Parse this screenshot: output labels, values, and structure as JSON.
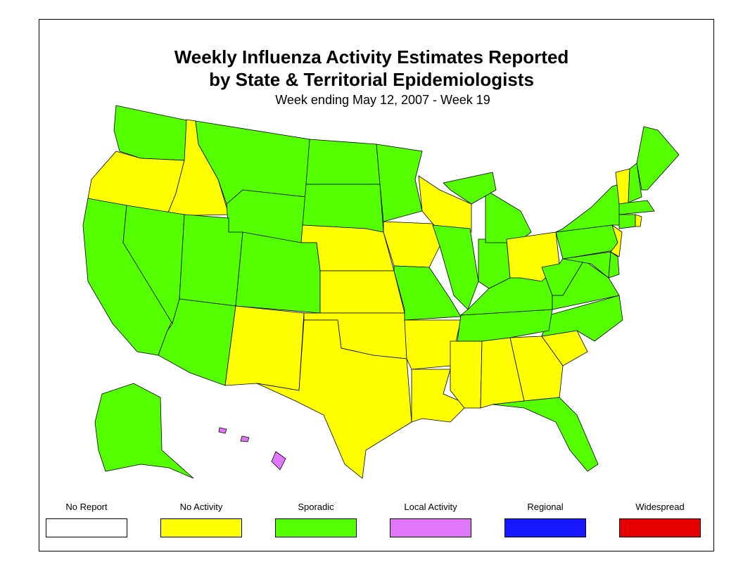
{
  "title_line1": "Weekly Influenza Activity Estimates Reported",
  "title_line2": "by State & Territorial Epidemiologists",
  "subtitle": "Week ending May 12, 2007 - Week 19",
  "legend": [
    {
      "key": "no_report",
      "label": "No Report",
      "color": "#FFFFFF"
    },
    {
      "key": "no_activity",
      "label": "No Activity",
      "color": "#FFFF00"
    },
    {
      "key": "sporadic",
      "label": "Sporadic",
      "color": "#54FF00"
    },
    {
      "key": "local",
      "label": "Local Activity",
      "color": "#E077F8"
    },
    {
      "key": "regional",
      "label": "Regional",
      "color": "#1616FF"
    },
    {
      "key": "widespread",
      "label": "Widespread",
      "color": "#E60000"
    }
  ],
  "states": {
    "WA": "sporadic",
    "OR": "no_activity",
    "ID": "no_activity",
    "MT": "sporadic",
    "WY": "sporadic",
    "ND": "sporadic",
    "SD": "sporadic",
    "NE": "no_activity",
    "CA": "sporadic",
    "NV": "sporadic",
    "UT": "sporadic",
    "AZ": "sporadic",
    "CO": "sporadic",
    "NM": "no_activity",
    "KS": "no_activity",
    "OK": "no_activity",
    "TX": "no_activity",
    "MN": "sporadic",
    "IA": "no_activity",
    "WI": "no_activity",
    "MO": "sporadic",
    "AR": "no_activity",
    "LA": "no_activity",
    "IL": "sporadic",
    "MS": "no_activity",
    "AL": "no_activity",
    "GA": "no_activity",
    "FL": "sporadic",
    "SC": "no_activity",
    "NC": "sporadic",
    "TN": "sporadic",
    "KY": "sporadic",
    "IN": "sporadic",
    "MI": "sporadic",
    "OH": "no_activity",
    "WV": "sporadic",
    "VA": "sporadic",
    "PA": "sporadic",
    "NY": "sporadic",
    "NJ": "no_activity",
    "MD": "sporadic",
    "DE": "sporadic",
    "VT": "no_activity",
    "NH": "sporadic",
    "ME": "sporadic",
    "MA": "sporadic",
    "CT": "sporadic",
    "RI": "no_activity",
    "AK": "sporadic",
    "HI": "local"
  }
}
